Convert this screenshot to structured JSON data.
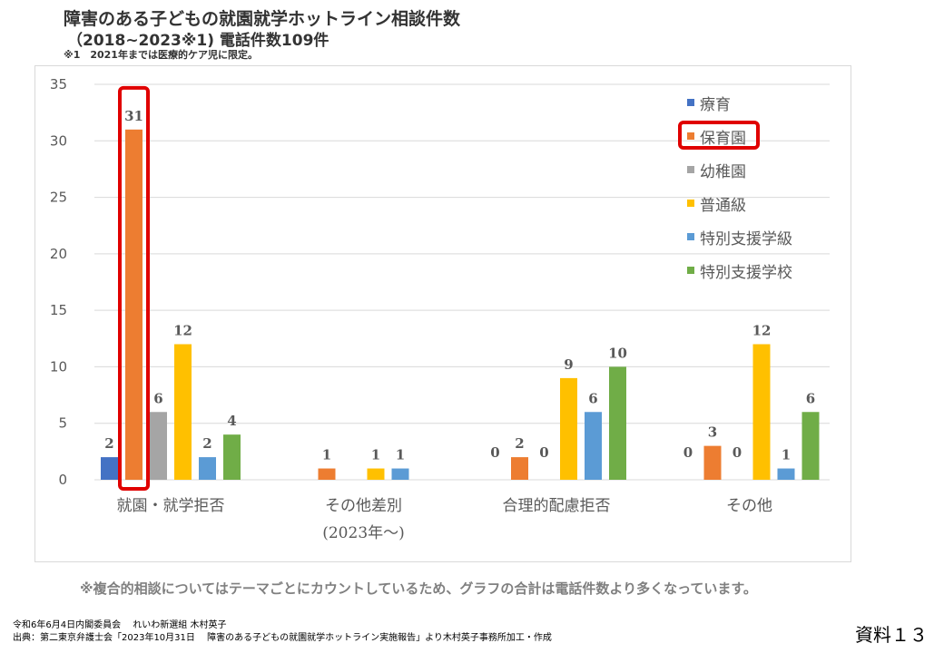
{
  "title": "障害のある子どもの就園就学ホットライン相談件数",
  "subtitle": "（2018~2023※1) 電話件数109件",
  "note_top": "※1　2021年までは医療的ケア児に限定。",
  "footnote": "※複合的相談についてはテーマごとにカウントしているため、グラフの合計は電話件数より多くなっています。",
  "footer": {
    "line1": "令和6年6月4日内閣委員会　 れいわ新選組 木村英子",
    "line2": "出典：第二東京弁護士会「2023年10月31日　 障害のある子どもの就園就学ホットライン実施報告」より木村英子事務所加工・作成"
  },
  "doc_label": "資料１３",
  "chart_data": {
    "type": "bar",
    "categories": [
      "就園・就学拒否",
      "その他差別",
      "合理的配慮拒否",
      "その他"
    ],
    "category_sublabels": [
      "",
      "(2023年〜)",
      "",
      ""
    ],
    "series": [
      {
        "name": "療育",
        "color": "#4472C4",
        "values": [
          2,
          0,
          0,
          0
        ]
      },
      {
        "name": "保育園",
        "color": "#ED7D31",
        "values": [
          31,
          1,
          2,
          3
        ]
      },
      {
        "name": "幼稚園",
        "color": "#A5A5A5",
        "values": [
          6,
          0,
          0,
          0
        ]
      },
      {
        "name": "普通級",
        "color": "#FFC000",
        "values": [
          12,
          1,
          9,
          12
        ]
      },
      {
        "name": "特別支援学級",
        "color": "#5B9BD5",
        "values": [
          2,
          1,
          6,
          1
        ]
      },
      {
        "name": "特別支援学校",
        "color": "#70AD47",
        "values": [
          4,
          0,
          10,
          6
        ]
      }
    ],
    "data_labels": [
      [
        "2",
        "",
        "",
        ""
      ],
      [
        "31",
        "1",
        "2",
        "3"
      ],
      [
        "6",
        "",
        "",
        ""
      ],
      [
        "12",
        "1",
        "9",
        "12"
      ],
      [
        "2",
        "1",
        "6",
        "1"
      ],
      [
        "4",
        "",
        "10",
        "6"
      ]
    ],
    "zero_labels": [
      {
        "category": 2,
        "series": 0,
        "text": "0"
      },
      {
        "category": 2,
        "series": 2,
        "text": "0"
      },
      {
        "category": 3,
        "series": 0,
        "text": "0"
      },
      {
        "category": 3,
        "series": 2,
        "text": "0"
      }
    ],
    "ylim": [
      0,
      35
    ],
    "yticks": [
      0,
      5,
      10,
      15,
      20,
      25,
      30,
      35
    ],
    "grid": true,
    "legend_position": "top-right",
    "highlight": {
      "color": "#E00000",
      "series": "保育園",
      "category": "就園・就学拒否"
    }
  }
}
